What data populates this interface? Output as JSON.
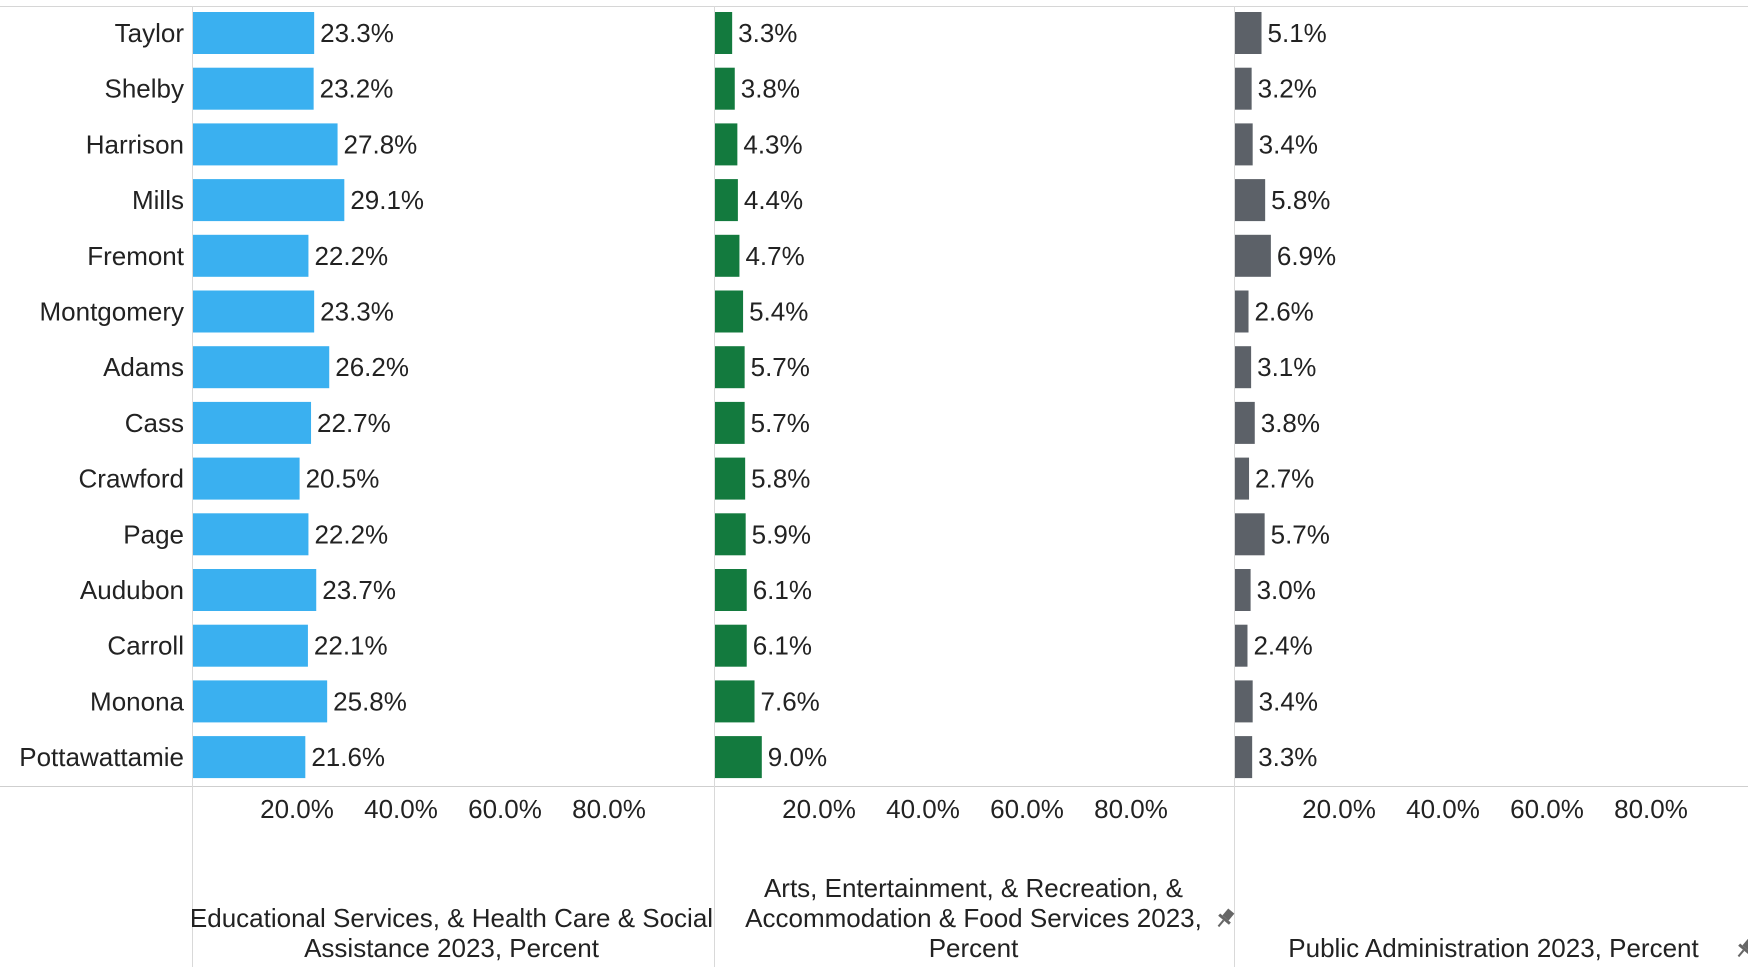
{
  "chart_data": {
    "type": "bar",
    "orientation": "horizontal",
    "categories": [
      "Taylor",
      "Shelby",
      "Harrison",
      "Mills",
      "Fremont",
      "Montgomery",
      "Adams",
      "Cass",
      "Crawford",
      "Page",
      "Audubon",
      "Carroll",
      "Monona",
      "Pottawattamie"
    ],
    "xlim": [
      0,
      100
    ],
    "xticks": [
      "20.0%",
      "40.0%",
      "60.0%",
      "80.0%"
    ],
    "tick_values": [
      20,
      40,
      60,
      80
    ],
    "grid": false,
    "series": [
      {
        "name": "Educational Services, & Health Care & Social Assistance 2023, Percent",
        "title_lines": [
          "Educational Services, & Health Care & Social",
          "Assistance 2023, Percent"
        ],
        "color": "#3ab0f0",
        "values": [
          23.3,
          23.2,
          27.8,
          29.1,
          22.2,
          23.3,
          26.2,
          22.7,
          20.5,
          22.2,
          23.7,
          22.1,
          25.8,
          21.6
        ],
        "labels": [
          "23.3%",
          "23.2%",
          "27.8%",
          "29.1%",
          "22.2%",
          "23.3%",
          "26.2%",
          "22.7%",
          "20.5%",
          "22.2%",
          "23.7%",
          "22.1%",
          "25.8%",
          "21.6%"
        ],
        "pinned": false
      },
      {
        "name": "Arts, Entertainment, & Recreation, & Accommodation & Food Services 2023, Percent",
        "title_lines": [
          "Arts, Entertainment, & Recreation, &",
          "Accommodation & Food Services 2023,",
          "Percent"
        ],
        "color": "#137a3e",
        "values": [
          3.3,
          3.8,
          4.3,
          4.4,
          4.7,
          5.4,
          5.7,
          5.7,
          5.8,
          5.9,
          6.1,
          6.1,
          7.6,
          9.0
        ],
        "labels": [
          "3.3%",
          "3.8%",
          "4.3%",
          "4.4%",
          "4.7%",
          "5.4%",
          "5.7%",
          "5.7%",
          "5.8%",
          "5.9%",
          "6.1%",
          "6.1%",
          "7.6%",
          "9.0%"
        ],
        "pinned": true
      },
      {
        "name": "Public Administration 2023, Percent",
        "title_lines": [
          "Public Administration 2023, Percent"
        ],
        "color": "#5c6168",
        "values": [
          5.1,
          3.2,
          3.4,
          5.8,
          6.9,
          2.6,
          3.1,
          3.8,
          2.7,
          5.7,
          3.0,
          2.4,
          3.4,
          3.3
        ],
        "labels": [
          "5.1%",
          "3.2%",
          "3.4%",
          "5.8%",
          "6.9%",
          "2.6%",
          "3.1%",
          "3.8%",
          "2.7%",
          "5.7%",
          "3.0%",
          "2.4%",
          "3.4%",
          "3.3%"
        ],
        "pinned": true
      }
    ]
  }
}
